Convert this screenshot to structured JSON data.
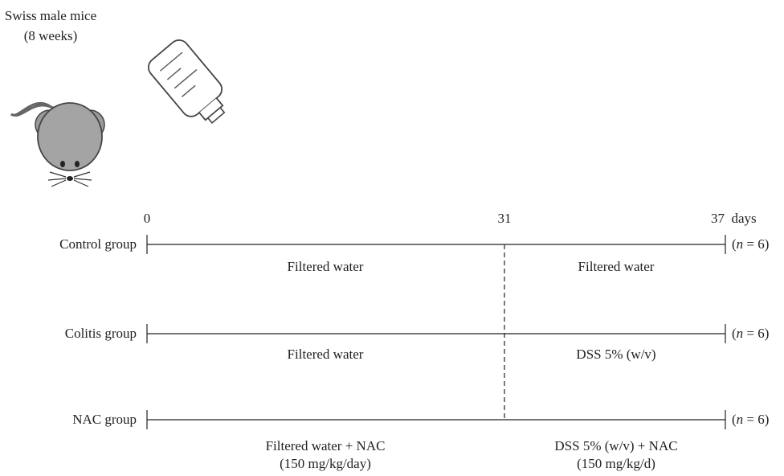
{
  "subject": {
    "line1": "Swiss male mice",
    "line2": "(8 weeks)"
  },
  "icons": [
    "mouse-icon",
    "water-bottle-icon"
  ],
  "axis": {
    "start_label": "0",
    "mid_label": "31",
    "end_label": "37",
    "unit": "days"
  },
  "groups": [
    {
      "name": "Control group",
      "n_prefix": "(",
      "n_symbol": "n",
      "n_value": " = 6)"
    },
    {
      "name": "Colitis group",
      "n_prefix": "(",
      "n_symbol": "n",
      "n_value": " = 6)"
    },
    {
      "name": "NAC group",
      "n_prefix": "(",
      "n_symbol": "n",
      "n_value": " = 6)"
    }
  ],
  "treatments": [
    {
      "before": [
        "Filtered water"
      ],
      "after": [
        "Filtered water"
      ]
    },
    {
      "before": [
        "Filtered water"
      ],
      "after": [
        "DSS 5% (w/v)"
      ]
    },
    {
      "before": [
        "Filtered water + NAC",
        "(150 mg/kg/day)"
      ],
      "after": [
        "DSS 5% (w/v) + NAC",
        "(150 mg/kg/d)"
      ]
    }
  ]
}
